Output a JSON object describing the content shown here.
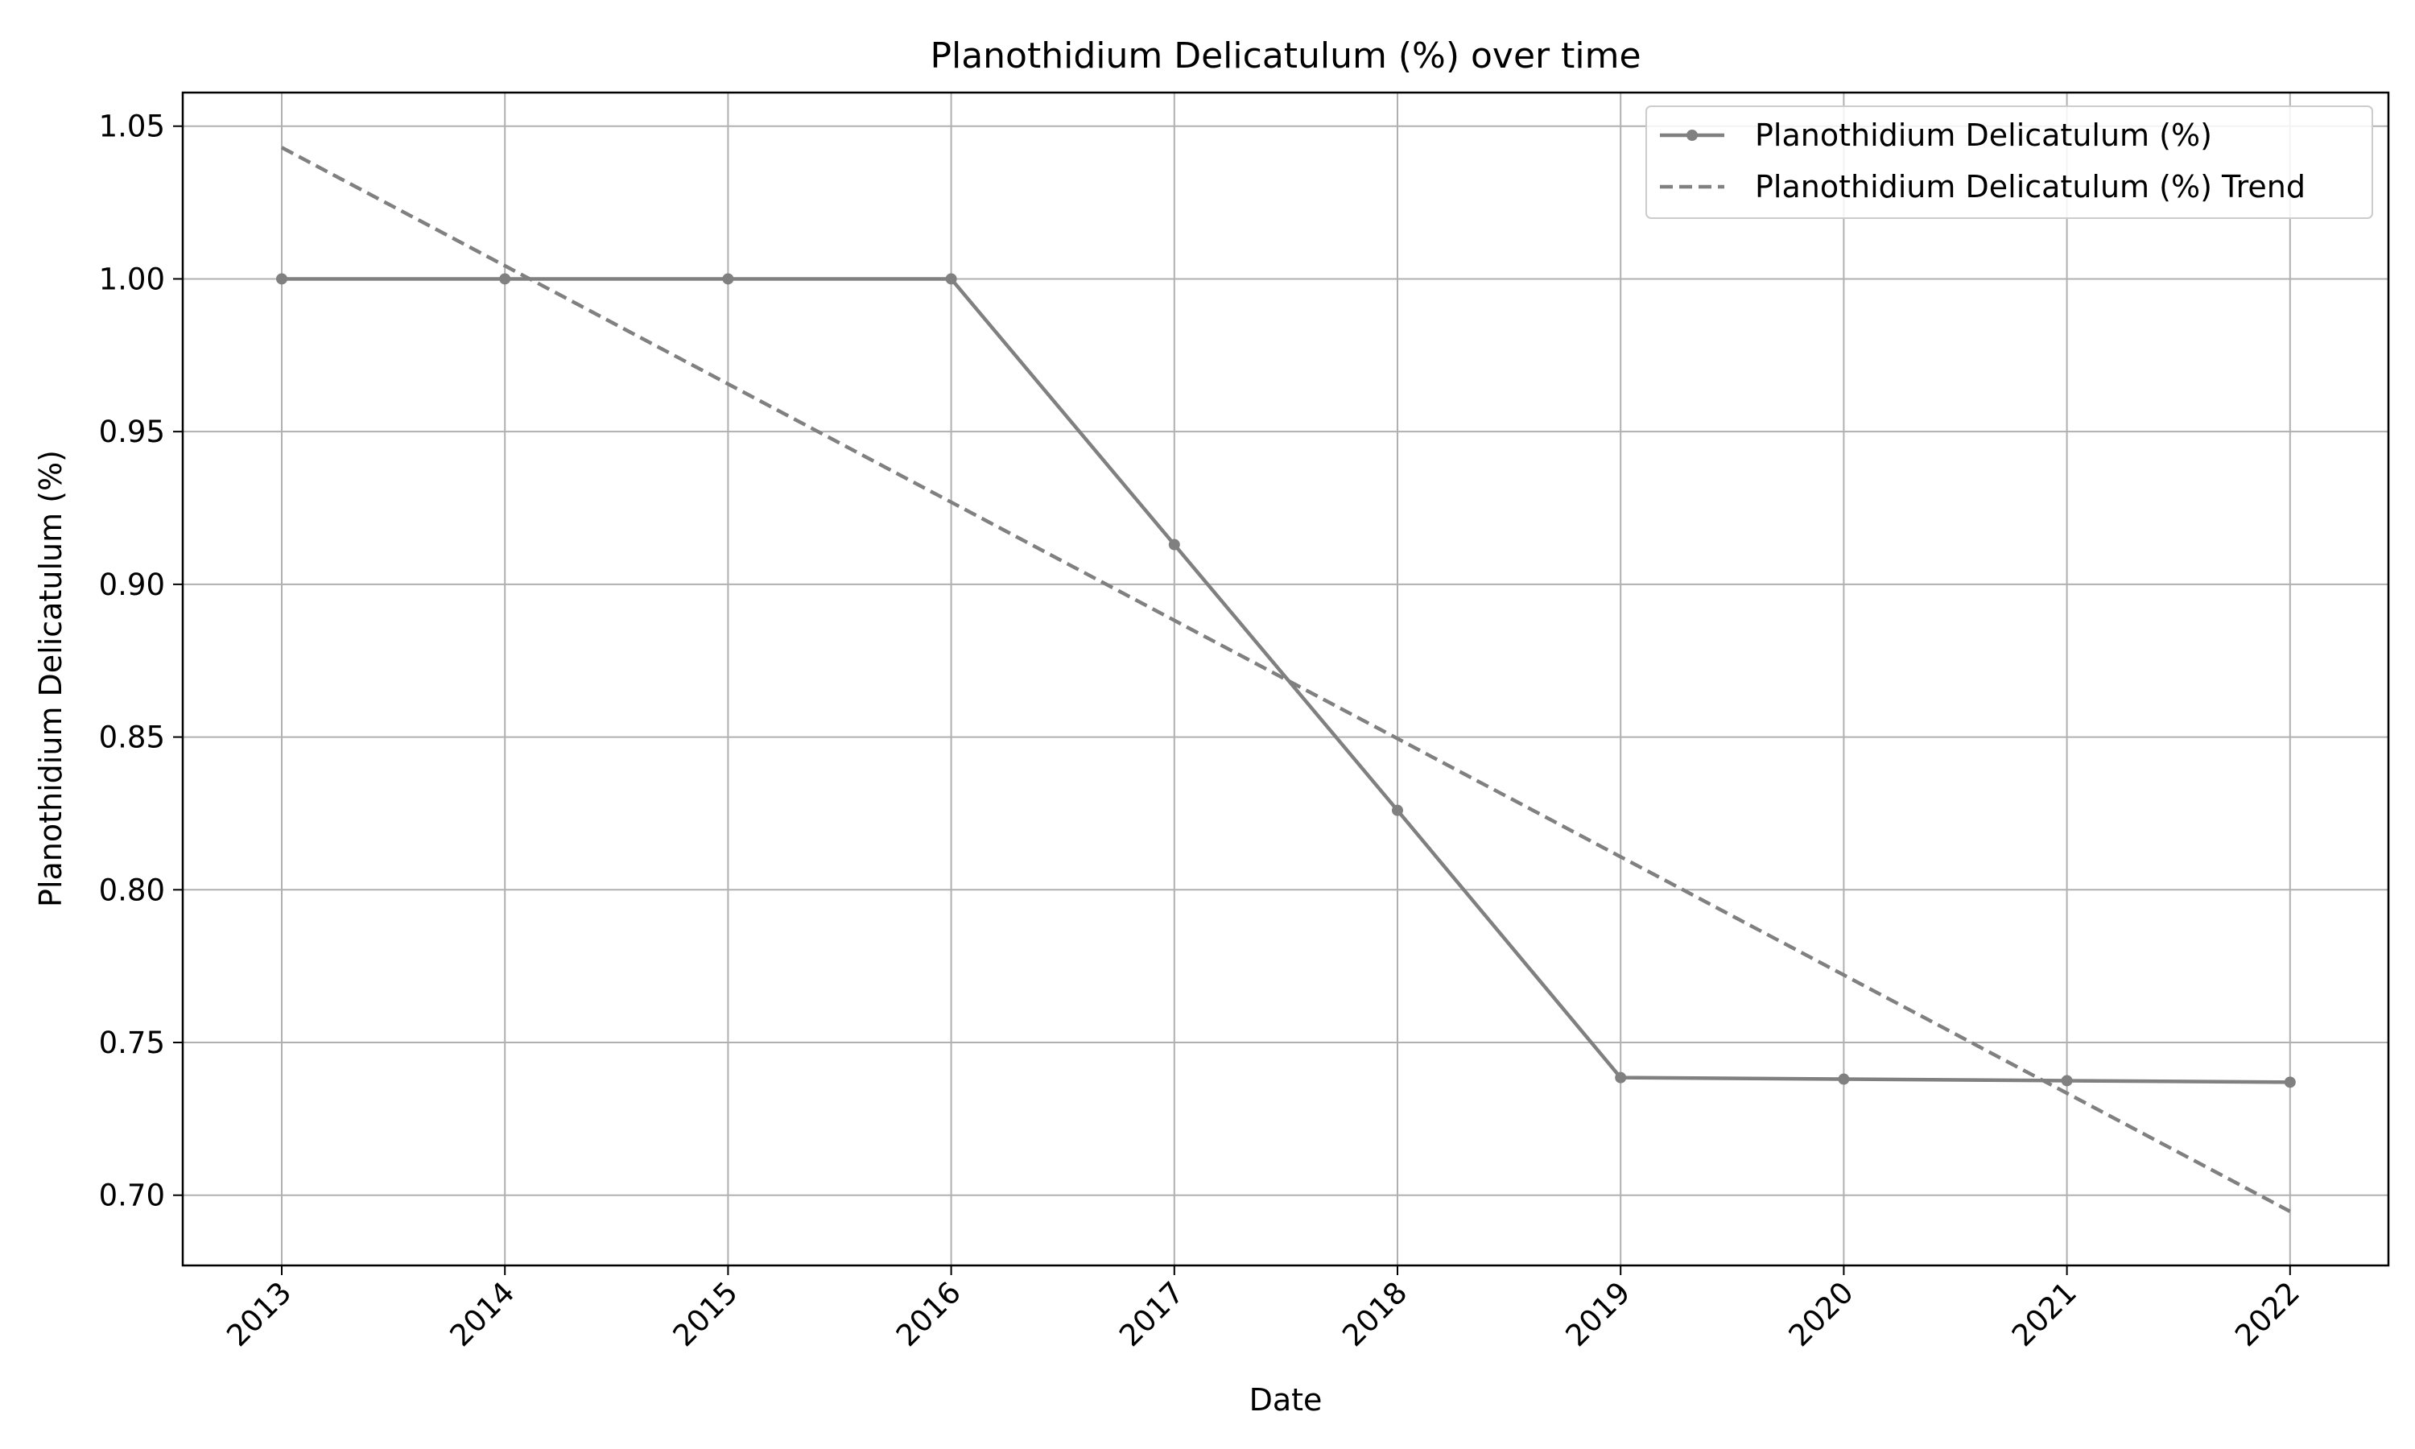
{
  "chart_data": {
    "type": "line",
    "title": "Planothidium Delicatulum (%) over time",
    "xlabel": "Date",
    "ylabel": "Planothidium Delicatulum (%)",
    "x": [
      "2013",
      "2014",
      "2015",
      "2016",
      "2017",
      "2018",
      "2019",
      "2020",
      "2021",
      "2022"
    ],
    "x_ticks": [
      "2013",
      "2014",
      "2015",
      "2016",
      "2017",
      "2018",
      "2019",
      "2020",
      "2021",
      "2022"
    ],
    "ylim": [
      0.677,
      1.061
    ],
    "y_ticks": [
      "0.70",
      "0.75",
      "0.80",
      "0.85",
      "0.90",
      "0.95",
      "1.00",
      "1.05"
    ],
    "grid": true,
    "legend_position": "top-right",
    "series": [
      {
        "name": "Planothidium Delicatulum (%)",
        "style": "solid-with-markers",
        "color": "#808080",
        "values": [
          1.0,
          1.0,
          1.0,
          1.0,
          0.913,
          0.826,
          0.7385,
          0.738,
          0.7375,
          0.737
        ]
      },
      {
        "name": "Planothidium Delicatulum (%) Trend",
        "style": "dashed",
        "color": "#808080",
        "values": [
          1.043,
          1.0043,
          0.9656,
          0.9269,
          0.8882,
          0.8495,
          0.8108,
          0.7721,
          0.7334,
          0.6947
        ]
      }
    ]
  }
}
